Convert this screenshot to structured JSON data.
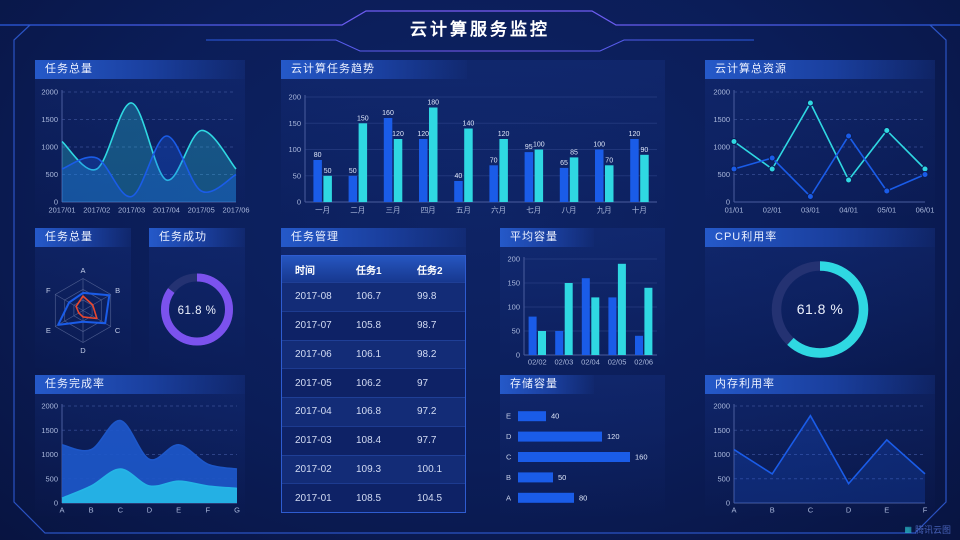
{
  "page_title": "云计算服务监控",
  "watermark": "腾讯云图",
  "colors": {
    "blue": "#1a5ce8",
    "cyan": "#2fd8e2",
    "purple": "#7b52ee",
    "red": "#e8472e",
    "deepblue": "#1d57c9",
    "skyblue": "#25b5e6",
    "axis": "#aab8dc",
    "grid": "#33498f"
  },
  "panels": {
    "p1": {
      "title": "任务总量"
    },
    "p2": {
      "title": "云计算任务趋势"
    },
    "p3": {
      "title": "云计算总资源"
    },
    "p4": {
      "title": "任务总量"
    },
    "p5": {
      "title": "任务成功",
      "value": "61.8 %"
    },
    "p6": {
      "title": "任务管理"
    },
    "p7": {
      "title": "平均容量"
    },
    "p8": {
      "title": "CPU利用率",
      "value": "61.8 %"
    },
    "p9": {
      "title": "任务完成率"
    },
    "p10": {
      "title": "存储容量"
    },
    "p11": {
      "title": "内存利用率"
    }
  },
  "table": {
    "columns": [
      "时间",
      "任务1",
      "任务2"
    ],
    "rows": [
      [
        "2017-08",
        "106.7",
        "99.8"
      ],
      [
        "2017-07",
        "105.8",
        "98.7"
      ],
      [
        "2017-06",
        "106.1",
        "98.2"
      ],
      [
        "2017-05",
        "106.2",
        "97"
      ],
      [
        "2017-04",
        "106.8",
        "97.2"
      ],
      [
        "2017-03",
        "108.4",
        "97.7"
      ],
      [
        "2017-02",
        "109.3",
        "100.1"
      ],
      [
        "2017-01",
        "108.5",
        "104.5"
      ]
    ]
  },
  "chart_data": [
    {
      "panel": "p1",
      "type": "area",
      "title": "任务总量",
      "smooth": true,
      "dashed": true,
      "x": [
        "2017/01",
        "2017/02",
        "2017/03",
        "2017/04",
        "2017/05",
        "2017/06"
      ],
      "ylim": [
        0,
        2000
      ],
      "yticks": [
        0,
        500,
        1000,
        1500,
        2000
      ],
      "series": [
        {
          "name": "series-cyan",
          "color": "cyan",
          "fo": 0.28,
          "values": [
            1100,
            600,
            1800,
            400,
            1300,
            600
          ]
        },
        {
          "name": "series-blue",
          "color": "blue",
          "fo": 0.3,
          "values": [
            600,
            800,
            100,
            1200,
            200,
            500
          ]
        }
      ]
    },
    {
      "panel": "p2",
      "type": "bar",
      "title": "云计算任务趋势",
      "labels": true,
      "dashed": false,
      "x": [
        "一月",
        "二月",
        "三月",
        "四月",
        "五月",
        "六月",
        "七月",
        "八月",
        "九月",
        "十月"
      ],
      "ylim": [
        0,
        200
      ],
      "yticks": [
        0,
        50,
        100,
        150,
        200
      ],
      "series": [
        {
          "name": "series-blue",
          "color": "blue",
          "values": [
            80,
            50,
            160,
            120,
            40,
            70,
            95,
            65,
            100,
            120
          ]
        },
        {
          "name": "series-cyan",
          "color": "cyan",
          "values": [
            50,
            150,
            120,
            180,
            140,
            120,
            100,
            85,
            70,
            90
          ]
        }
      ]
    },
    {
      "panel": "p3",
      "type": "line",
      "title": "云计算总资源",
      "markers": true,
      "dashed": true,
      "x": [
        "01/01",
        "02/01",
        "03/01",
        "04/01",
        "05/01",
        "06/01"
      ],
      "ylim": [
        0,
        2000
      ],
      "yticks": [
        0,
        500,
        1000,
        1500,
        2000
      ],
      "series": [
        {
          "name": "series-cyan",
          "color": "cyan",
          "values": [
            1100,
            600,
            1800,
            400,
            1300,
            600
          ]
        },
        {
          "name": "series-blue",
          "color": "blue",
          "values": [
            600,
            800,
            100,
            1200,
            200,
            500
          ]
        }
      ]
    },
    {
      "panel": "p4",
      "type": "radar",
      "title": "任务总量",
      "max": 100,
      "axes": [
        "A",
        "B",
        "C",
        "D",
        "E",
        "F"
      ],
      "series": [
        {
          "name": "series-blue",
          "color": "blue",
          "w": 2,
          "values": [
            55,
            95,
            80,
            35,
            90,
            50
          ]
        },
        {
          "name": "series-red",
          "color": "red",
          "w": 1.6,
          "values": [
            45,
            35,
            50,
            20,
            15,
            25
          ]
        }
      ]
    },
    {
      "panel": "p5",
      "type": "donut",
      "title": "任务成功",
      "percent": 61.8,
      "arc": 85,
      "color": "purple",
      "label": "61.8 %",
      "fs": 11.5
    },
    {
      "panel": "p7",
      "type": "bar",
      "title": "平均容量",
      "labels": false,
      "dashed": false,
      "x": [
        "02/02",
        "02/03",
        "02/04",
        "02/05",
        "02/06"
      ],
      "ylim": [
        0,
        200
      ],
      "yticks": [
        0,
        50,
        100,
        150,
        200
      ],
      "series": [
        {
          "name": "series-blue",
          "color": "blue",
          "values": [
            80,
            50,
            160,
            120,
            40
          ]
        },
        {
          "name": "series-cyan",
          "color": "cyan",
          "values": [
            50,
            150,
            120,
            190,
            140
          ]
        }
      ]
    },
    {
      "panel": "p8",
      "type": "donut",
      "title": "CPU利用率",
      "percent": 61.8,
      "arc": 61.8,
      "color": "cyan",
      "label": "61.8 %",
      "fs": 14
    },
    {
      "panel": "p9",
      "type": "area",
      "title": "任务完成率",
      "smooth": true,
      "dashed": true,
      "x": [
        "A",
        "B",
        "C",
        "D",
        "E",
        "F",
        "G"
      ],
      "ylim": [
        0,
        2000
      ],
      "yticks": [
        0,
        500,
        1000,
        1500,
        2000
      ],
      "series": [
        {
          "name": "series-deepblue",
          "color": "deepblue",
          "fo": 0.92,
          "values": [
            1200,
            1100,
            1700,
            900,
            1200,
            800,
            700
          ]
        },
        {
          "name": "series-skyblue",
          "color": "skyblue",
          "fo": 0.95,
          "values": [
            100,
            350,
            700,
            350,
            450,
            350,
            300
          ]
        }
      ]
    },
    {
      "panel": "p10",
      "type": "hbar",
      "title": "存储容量",
      "color": "blue",
      "xmax": 170,
      "categories": [
        "E",
        "D",
        "C",
        "B",
        "A"
      ],
      "values": [
        40,
        120,
        160,
        50,
        80
      ]
    },
    {
      "panel": "p11",
      "type": "line",
      "title": "内存利用率",
      "markers": false,
      "area": true,
      "dashed": true,
      "x": [
        "A",
        "B",
        "C",
        "D",
        "E",
        "F"
      ],
      "ylim": [
        0,
        2000
      ],
      "yticks": [
        0,
        500,
        1000,
        1500,
        2000
      ],
      "series": [
        {
          "name": "series-blue",
          "color": "blue",
          "fo": 0.22,
          "values": [
            1100,
            600,
            1800,
            400,
            1300,
            600
          ]
        }
      ]
    }
  ]
}
